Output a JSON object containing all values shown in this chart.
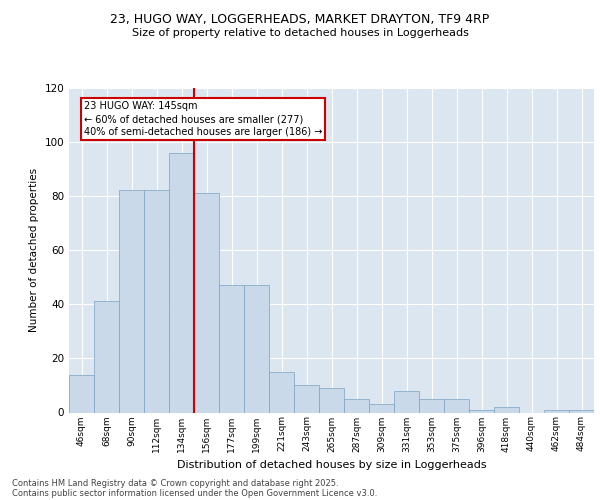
{
  "title_line1": "23, HUGO WAY, LOGGERHEADS, MARKET DRAYTON, TF9 4RP",
  "title_line2": "Size of property relative to detached houses in Loggerheads",
  "xlabel": "Distribution of detached houses by size in Loggerheads",
  "ylabel": "Number of detached properties",
  "bar_labels": [
    "46sqm",
    "68sqm",
    "90sqm",
    "112sqm",
    "134sqm",
    "156sqm",
    "177sqm",
    "199sqm",
    "221sqm",
    "243sqm",
    "265sqm",
    "287sqm",
    "309sqm",
    "331sqm",
    "353sqm",
    "375sqm",
    "396sqm",
    "418sqm",
    "440sqm",
    "462sqm",
    "484sqm"
  ],
  "bar_values": [
    14,
    41,
    82,
    82,
    96,
    81,
    47,
    47,
    15,
    10,
    9,
    5,
    3,
    8,
    5,
    5,
    1,
    2,
    0,
    1,
    1
  ],
  "bar_color": "#c9d9ea",
  "bar_edge_color": "#7aa3c0",
  "background_color": "#dce6f0",
  "grid_color": "#ffffff",
  "fig_background": "#ffffff",
  "vline_x": 4.5,
  "vline_color": "#cc0000",
  "annotation_text": "23 HUGO WAY: 145sqm\n← 60% of detached houses are smaller (277)\n40% of semi-detached houses are larger (186) →",
  "annotation_box_facecolor": "#ffffff",
  "annotation_box_edgecolor": "#cc0000",
  "ylim": [
    0,
    120
  ],
  "yticks": [
    0,
    20,
    40,
    60,
    80,
    100,
    120
  ],
  "footnote_line1": "Contains HM Land Registry data © Crown copyright and database right 2025.",
  "footnote_line2": "Contains public sector information licensed under the Open Government Licence v3.0."
}
